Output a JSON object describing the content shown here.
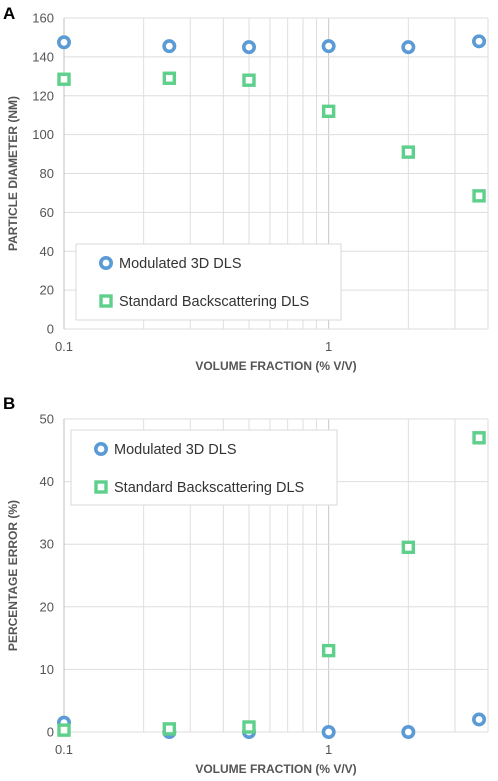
{
  "chart_data": [
    {
      "panel_label": "A",
      "type": "scatter",
      "xscale": "log",
      "xlim": [
        0.1,
        4
      ],
      "ylim": [
        0,
        160
      ],
      "xticks": [
        0.1,
        1
      ],
      "xtick_labels": [
        "0.1",
        "1"
      ],
      "yticks": [
        0,
        20,
        40,
        60,
        80,
        100,
        120,
        140,
        160
      ],
      "xlabel": "VOLUME FRACTION (% V/V)",
      "ylabel": "PARTICLE DIAMETER (NM)",
      "grid": true,
      "legend": "bottom-left",
      "series": [
        {
          "name": "Modulated 3D DLS",
          "marker": "circle",
          "color": "#5B9BD5",
          "x": [
            0.1,
            0.25,
            0.5,
            1,
            2,
            3.7
          ],
          "y": [
            147.5,
            145.5,
            145,
            145.5,
            145,
            148
          ]
        },
        {
          "name": "Standard Backscattering DLS",
          "marker": "square",
          "color": "#5FD08B",
          "x": [
            0.1,
            0.25,
            0.5,
            1,
            2,
            3.7
          ],
          "y": [
            128.5,
            129,
            128,
            112,
            91,
            68.5
          ]
        }
      ]
    },
    {
      "panel_label": "B",
      "type": "scatter",
      "xscale": "log",
      "xlim": [
        0.1,
        4
      ],
      "ylim": [
        0,
        50
      ],
      "xticks": [
        0.1,
        1
      ],
      "xtick_labels": [
        "0.1",
        "1"
      ],
      "yticks": [
        0,
        10,
        20,
        30,
        40,
        50
      ],
      "xlabel": "VOLUME FRACTION (% V/V)",
      "ylabel": "PERCENTAGE ERROR (%)",
      "grid": true,
      "legend": "top-left",
      "series": [
        {
          "name": "Modulated 3D DLS",
          "marker": "circle",
          "color": "#5B9BD5",
          "x": [
            0.1,
            0.25,
            0.5,
            1,
            2,
            3.7
          ],
          "y": [
            1.5,
            0,
            0,
            0,
            0,
            2
          ]
        },
        {
          "name": "Standard Backscattering DLS",
          "marker": "square",
          "color": "#5FD08B",
          "x": [
            0.1,
            0.25,
            0.5,
            1,
            2,
            3.7
          ],
          "y": [
            0.3,
            0.5,
            0.8,
            13,
            29.5,
            47
          ]
        }
      ]
    }
  ]
}
